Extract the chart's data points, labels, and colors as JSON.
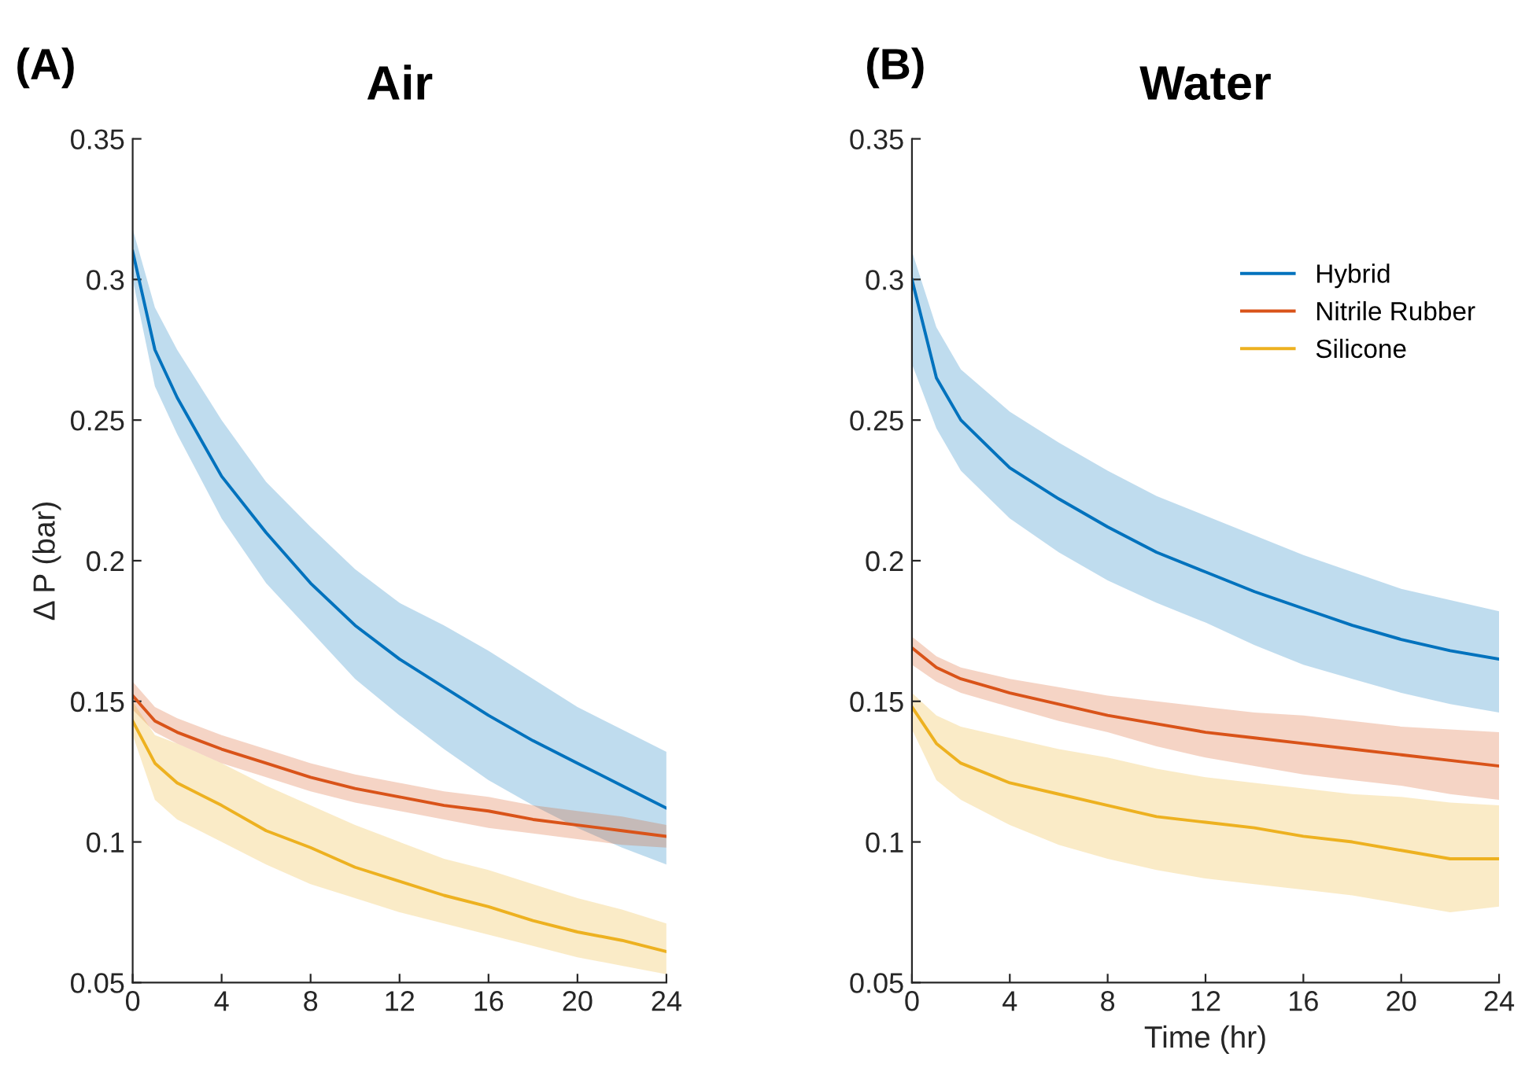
{
  "chart_data": [
    {
      "type": "line",
      "title": "Air",
      "annotations": [
        "(A)"
      ],
      "ylabel": "Δ P (bar)",
      "x": [
        0,
        1,
        2,
        4,
        6,
        8,
        10,
        12,
        14,
        16,
        18,
        20,
        22,
        24
      ],
      "series": [
        {
          "color": "#0072bd",
          "values": [
            0.31,
            0.275,
            0.258,
            0.23,
            0.21,
            0.192,
            0.177,
            0.165,
            0.155,
            0.145,
            0.136,
            0.128,
            0.12,
            0.112
          ],
          "upper": [
            0.318,
            0.29,
            0.275,
            0.25,
            0.228,
            0.212,
            0.197,
            0.185,
            0.177,
            0.168,
            0.158,
            0.148,
            0.14,
            0.132
          ],
          "lower": [
            0.3,
            0.262,
            0.245,
            0.215,
            0.192,
            0.175,
            0.158,
            0.145,
            0.133,
            0.122,
            0.113,
            0.105,
            0.098,
            0.092
          ]
        },
        {
          "color": "#d95319",
          "values": [
            0.152,
            0.143,
            0.139,
            0.133,
            0.128,
            0.123,
            0.119,
            0.116,
            0.113,
            0.111,
            0.108,
            0.106,
            0.104,
            0.102
          ],
          "upper": [
            0.157,
            0.148,
            0.144,
            0.138,
            0.133,
            0.128,
            0.124,
            0.121,
            0.118,
            0.116,
            0.113,
            0.111,
            0.109,
            0.106
          ],
          "lower": [
            0.147,
            0.139,
            0.135,
            0.128,
            0.123,
            0.118,
            0.114,
            0.111,
            0.108,
            0.105,
            0.103,
            0.101,
            0.099,
            0.098
          ]
        },
        {
          "color": "#edb120",
          "values": [
            0.143,
            0.128,
            0.121,
            0.113,
            0.104,
            0.098,
            0.091,
            0.086,
            0.081,
            0.077,
            0.072,
            0.068,
            0.065,
            0.061
          ],
          "upper": [
            0.15,
            0.138,
            0.135,
            0.128,
            0.12,
            0.113,
            0.106,
            0.1,
            0.094,
            0.09,
            0.085,
            0.08,
            0.076,
            0.071
          ],
          "lower": [
            0.138,
            0.115,
            0.108,
            0.1,
            0.092,
            0.085,
            0.08,
            0.075,
            0.071,
            0.067,
            0.063,
            0.059,
            0.056,
            0.053
          ]
        }
      ],
      "xlim": [
        0,
        24
      ],
      "xticks": [
        0,
        4,
        8,
        12,
        16,
        20,
        24
      ],
      "ylim": [
        0.05,
        0.35
      ],
      "yticks": [
        0.05,
        0.1,
        0.15,
        0.2,
        0.25,
        0.3,
        0.35
      ],
      "grid": false,
      "legend": false
    },
    {
      "type": "line",
      "title": "Water",
      "annotations": [
        "(B)"
      ],
      "xlabel": "Time (hr)",
      "x": [
        0,
        1,
        2,
        4,
        6,
        8,
        10,
        12,
        14,
        16,
        18,
        20,
        22,
        24
      ],
      "series": [
        {
          "name": "Hybrid",
          "color": "#0072bd",
          "values": [
            0.3,
            0.265,
            0.25,
            0.233,
            0.222,
            0.212,
            0.203,
            0.196,
            0.189,
            0.183,
            0.177,
            0.172,
            0.168,
            0.165
          ],
          "upper": [
            0.31,
            0.283,
            0.268,
            0.253,
            0.242,
            0.232,
            0.223,
            0.216,
            0.209,
            0.202,
            0.196,
            0.19,
            0.186,
            0.182
          ],
          "lower": [
            0.27,
            0.247,
            0.232,
            0.215,
            0.203,
            0.193,
            0.185,
            0.178,
            0.17,
            0.163,
            0.158,
            0.153,
            0.149,
            0.146
          ]
        },
        {
          "name": "Nitrile Rubber",
          "color": "#d95319",
          "values": [
            0.169,
            0.162,
            0.158,
            0.153,
            0.149,
            0.145,
            0.142,
            0.139,
            0.137,
            0.135,
            0.133,
            0.131,
            0.129,
            0.127
          ],
          "upper": [
            0.173,
            0.166,
            0.162,
            0.158,
            0.155,
            0.152,
            0.15,
            0.148,
            0.146,
            0.145,
            0.143,
            0.141,
            0.14,
            0.139
          ],
          "lower": [
            0.163,
            0.157,
            0.153,
            0.148,
            0.143,
            0.139,
            0.134,
            0.13,
            0.127,
            0.124,
            0.122,
            0.12,
            0.117,
            0.115
          ]
        },
        {
          "name": "Silicone",
          "color": "#edb120",
          "values": [
            0.148,
            0.135,
            0.128,
            0.121,
            0.117,
            0.113,
            0.109,
            0.107,
            0.105,
            0.102,
            0.1,
            0.097,
            0.094,
            0.094
          ],
          "upper": [
            0.153,
            0.145,
            0.141,
            0.137,
            0.133,
            0.13,
            0.126,
            0.123,
            0.121,
            0.119,
            0.117,
            0.116,
            0.114,
            0.113
          ],
          "lower": [
            0.14,
            0.122,
            0.115,
            0.106,
            0.099,
            0.094,
            0.09,
            0.087,
            0.085,
            0.083,
            0.081,
            0.078,
            0.075,
            0.077
          ]
        }
      ],
      "xlim": [
        0,
        24
      ],
      "xticks": [
        0,
        4,
        8,
        12,
        16,
        20,
        24
      ],
      "ylim": [
        0.05,
        0.35
      ],
      "yticks": [
        0.05,
        0.1,
        0.15,
        0.2,
        0.25,
        0.3,
        0.35
      ],
      "grid": false,
      "legend": "top right"
    }
  ]
}
